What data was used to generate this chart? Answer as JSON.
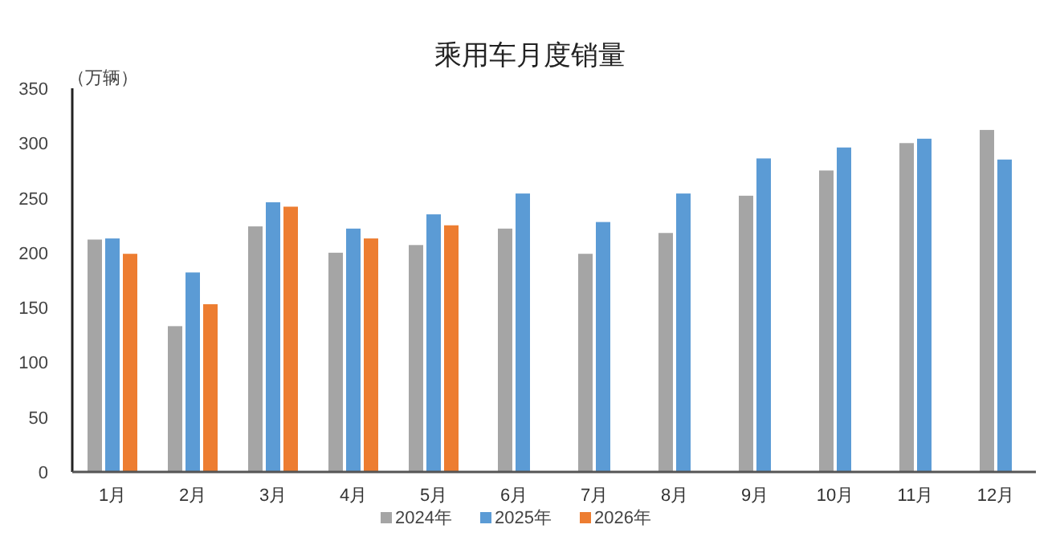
{
  "chart_data": {
    "type": "bar",
    "title": "乘用车月度销量",
    "ylabel": "（万辆）",
    "categories": [
      "1月",
      "2月",
      "3月",
      "4月",
      "5月",
      "6月",
      "7月",
      "8月",
      "9月",
      "10月",
      "11月",
      "12月"
    ],
    "series": [
      {
        "name": "2024年",
        "color": "#a5a5a5",
        "values": [
          212,
          133,
          224,
          200,
          207,
          222,
          199,
          218,
          252,
          275,
          300,
          312
        ]
      },
      {
        "name": "2025年",
        "color": "#5b9bd5",
        "values": [
          213,
          182,
          246,
          222,
          235,
          254,
          228,
          254,
          286,
          296,
          304,
          285
        ]
      },
      {
        "name": "2026年",
        "color": "#ed7d31",
        "values": [
          199,
          153,
          242,
          213,
          225,
          null,
          null,
          null,
          null,
          null,
          null,
          null
        ]
      }
    ],
    "ylim": [
      0,
      350
    ],
    "yticks": [
      0,
      50,
      100,
      150,
      200,
      250,
      300,
      350
    ],
    "grid": false,
    "legend": "bottom"
  }
}
